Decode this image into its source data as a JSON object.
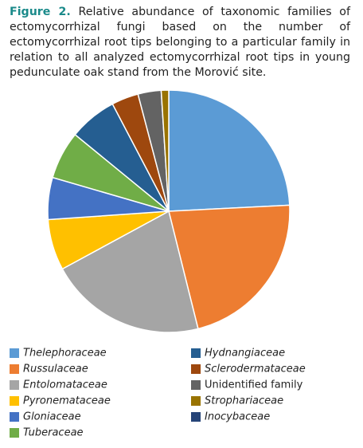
{
  "chart_data": {
    "type": "pie",
    "figure_label": "Figure 2.",
    "title": "Relative abundance of taxonomic families of ectomycorrhizal fungi based on the number of ectomycorrhizal root tips belonging to a particular family in relation to all analyzed ectomycorrhizal root tips in young pedunculate oak stand from the Morović site.",
    "categories": [
      "Thelephoraceae",
      "Russulaceae",
      "Entolomataceae",
      "Pyronemataceae",
      "Gloniaceae",
      "Tuberaceae",
      "Hydnangiaceae",
      "Sclerodermataceae",
      "Unidentified family",
      "Strophariaceae",
      "Inocybaceae"
    ],
    "values": [
      24.2,
      21.9,
      21.0,
      6.8,
      5.6,
      6.4,
      6.4,
      3.6,
      3.1,
      1.0,
      0
    ],
    "colors": [
      "#5b9bd5",
      "#ed7d31",
      "#a5a5a5",
      "#ffc000",
      "#4472c4",
      "#70ad47",
      "#255e91",
      "#9e480e",
      "#636363",
      "#997300",
      "#264478"
    ],
    "italic": [
      true,
      true,
      true,
      true,
      true,
      true,
      true,
      true,
      false,
      true,
      true
    ]
  }
}
